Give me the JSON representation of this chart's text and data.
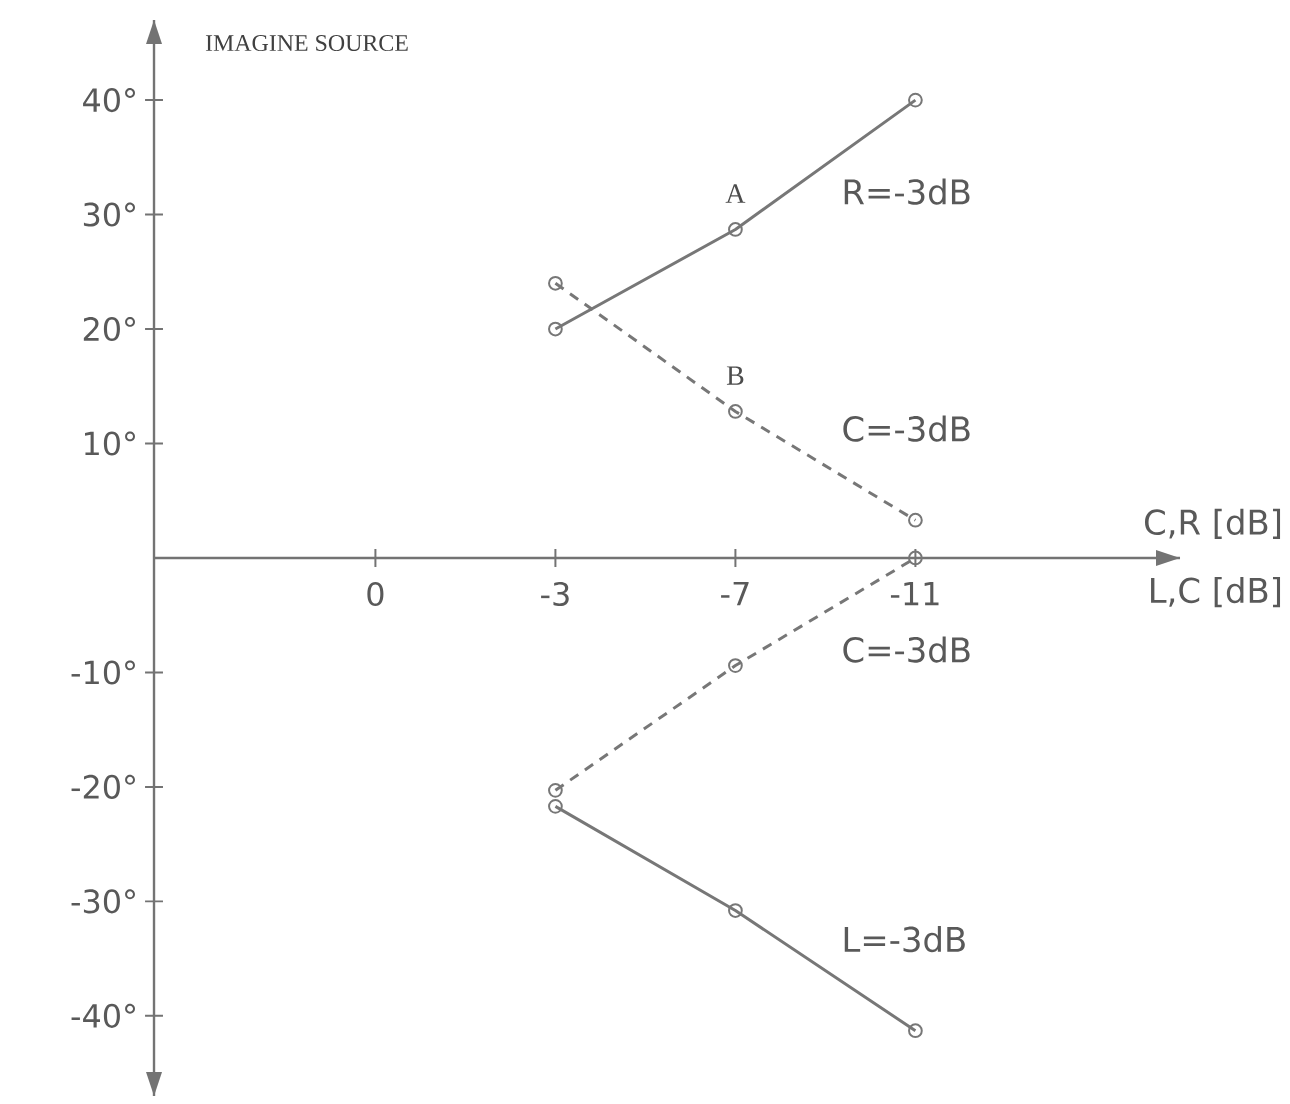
{
  "chart_data": {
    "type": "line",
    "title": "IMAGINE SOURCE",
    "xlabel": "C,R [dB]",
    "categories": [
      "0",
      "-3",
      "-7",
      "-11"
    ],
    "series": [
      {
        "name": "R=-3dB",
        "color": "#777777",
        "line_style": "solid",
        "values": [
          null,
          20,
          28.7,
          40
        ]
      },
      {
        "name": "C=-3dB",
        "color": "#777777",
        "line_style": "dashed",
        "values": [
          null,
          24,
          12.8,
          3.3
        ]
      },
      {
        "name": "C=-3dB",
        "color": "#777777",
        "line_style": "dashed",
        "values": [
          null,
          -20.3,
          -9.4,
          0
        ]
      },
      {
        "name": "L=-3dB",
        "color": "#777777",
        "line_style": "solid",
        "values": [
          null,
          -21.7,
          -30.8,
          -41.3
        ]
      }
    ],
    "marker": "circle",
    "grid": false,
    "ylim": [
      -47,
      47
    ],
    "yticks": [
      {
        "value": 40,
        "label": "40°"
      },
      {
        "value": 30,
        "label": "30°"
      },
      {
        "value": 20,
        "label": "20°"
      },
      {
        "value": 10,
        "label": "10°"
      },
      {
        "value": -10,
        "label": "-10°"
      },
      {
        "value": -20,
        "label": "-20°"
      },
      {
        "value": -30,
        "label": "-30°"
      },
      {
        "value": -40,
        "label": "-40°"
      }
    ],
    "annotations": [
      "A",
      "B",
      "L,C [dB]"
    ]
  }
}
